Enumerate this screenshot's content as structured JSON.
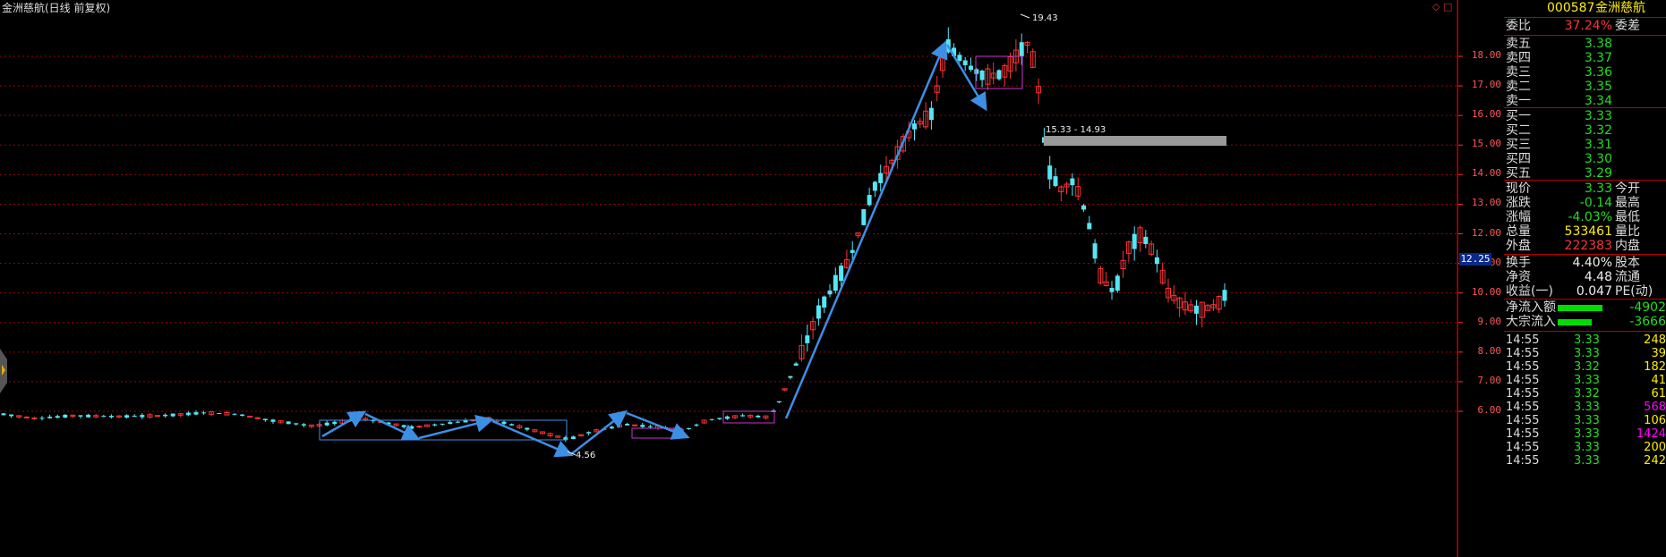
{
  "title": "金洲慈航(日线 前复权)",
  "corner_icons": "◇ □",
  "price_axis": {
    "labels": [
      "18.00",
      "17.00",
      "16.00",
      "15.00",
      "14.00",
      "13.00",
      "12.00",
      "11.00",
      "10.00",
      "9.00",
      "8.00",
      "7.00",
      "6.00"
    ],
    "current": "12.25"
  },
  "annotations": {
    "high_label": "19.43",
    "low_label": "4.56",
    "zone_label": "15.33 - 14.93"
  },
  "colors": {
    "up": "#ff3333",
    "down": "#55e6f5",
    "arrow": "#3d8fe6",
    "box_blue": "#3d8fe6",
    "box_magenta": "#cc33cc",
    "grid": "#a00000"
  },
  "panel": {
    "code": "000587",
    "name": "金洲慈航",
    "weibi_label": "委比",
    "weibi_value": "37.24%",
    "weicha_label": "委差",
    "asks": [
      {
        "label": "卖五",
        "price": "3.38"
      },
      {
        "label": "卖四",
        "price": "3.37"
      },
      {
        "label": "卖三",
        "price": "3.36"
      },
      {
        "label": "卖二",
        "price": "3.35"
      },
      {
        "label": "卖一",
        "price": "3.34"
      }
    ],
    "bids": [
      {
        "label": "买一",
        "price": "3.33"
      },
      {
        "label": "买二",
        "price": "3.32"
      },
      {
        "label": "买三",
        "price": "3.31"
      },
      {
        "label": "买四",
        "price": "3.30"
      },
      {
        "label": "买五",
        "price": "3.29"
      }
    ],
    "stats": [
      {
        "label": "现价",
        "value": "3.33",
        "label2": "今开",
        "color": "green"
      },
      {
        "label": "涨跌",
        "value": "-0.14",
        "label2": "最高",
        "color": "green"
      },
      {
        "label": "涨幅",
        "value": "-4.03%",
        "label2": "最低",
        "color": "green"
      },
      {
        "label": "总量",
        "value": "533461",
        "label2": "量比",
        "color": "yellow"
      },
      {
        "label": "外盘",
        "value": "222383",
        "label2": "内盘",
        "color": "red"
      }
    ],
    "fund": [
      {
        "label": "换手",
        "value": "4.40%",
        "label2": "股本",
        "color": "white"
      },
      {
        "label": "净资",
        "value": "4.48",
        "label2": "流通",
        "color": "white"
      },
      {
        "label": "收益(一)",
        "value": "0.047",
        "label2": "PE(动)",
        "color": "white"
      }
    ],
    "flows": [
      {
        "label": "净流入额",
        "value": "-4902",
        "bar": 0.62
      },
      {
        "label": "大宗流入",
        "value": "-3666",
        "bar": 0.47
      }
    ],
    "ticks": [
      {
        "time": "14:55",
        "price": "3.33",
        "vol": "248",
        "pc": "green",
        "vc": "yellow"
      },
      {
        "time": "14:55",
        "price": "3.33",
        "vol": "39",
        "pc": "green",
        "vc": "yellow"
      },
      {
        "time": "14:55",
        "price": "3.32",
        "vol": "182",
        "pc": "green",
        "vc": "yellow"
      },
      {
        "time": "14:55",
        "price": "3.33",
        "vol": "41",
        "pc": "green",
        "vc": "yellow"
      },
      {
        "time": "14:55",
        "price": "3.32",
        "vol": "61",
        "pc": "green",
        "vc": "yellow"
      },
      {
        "time": "14:55",
        "price": "3.33",
        "vol": "568",
        "pc": "green",
        "vc": "magenta"
      },
      {
        "time": "14:55",
        "price": "3.33",
        "vol": "106",
        "pc": "green",
        "vc": "yellow"
      },
      {
        "time": "14:55",
        "price": "3.33",
        "vol": "1424",
        "pc": "green",
        "vc": "magenta"
      },
      {
        "time": "14:55",
        "price": "3.33",
        "vol": "200",
        "pc": "green",
        "vc": "yellow"
      },
      {
        "time": "14:55",
        "price": "3.33",
        "vol": "242",
        "pc": "green",
        "vc": "yellow"
      }
    ]
  }
}
